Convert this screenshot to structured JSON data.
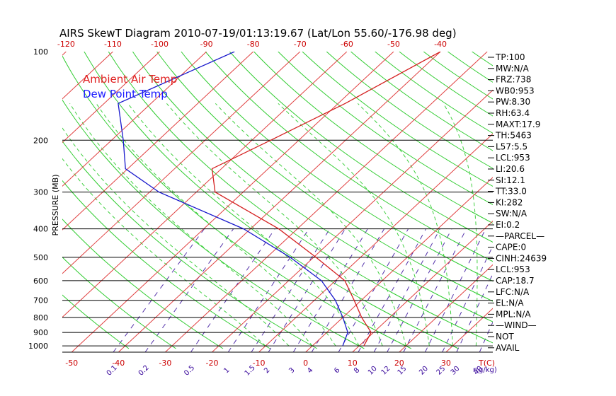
{
  "chart_data": {
    "type": "line",
    "title": "AIRS SkewT Diagram 2010-07-19/01:13:19.67 (Lat/Lon 55.60/-176.98 deg)",
    "ylabel": "PRESSURE (MB)",
    "xlabel_bottom_unit": "T(C)",
    "mixing_unit": "r(g/kg)",
    "pressure_ticks": [
      100,
      200,
      300,
      400,
      500,
      600,
      700,
      800,
      900,
      1000
    ],
    "pressure_range": [
      100,
      1050
    ],
    "temp_range_at_base": [
      -52,
      40
    ],
    "top_temp_ticks": [
      -120,
      -110,
      -100,
      -90,
      -80,
      -70,
      -60,
      -50,
      -40
    ],
    "bottom_temp_ticks": [
      -50,
      -40,
      -30,
      -20,
      -10,
      0,
      10,
      20,
      30
    ],
    "mixing_ratio_ticks": [
      "0.1",
      "0.2",
      "0.5",
      "1",
      "1.5",
      "2",
      "3",
      "4",
      "6",
      "8",
      "10",
      "12",
      "15",
      "20",
      "25",
      "30",
      "40"
    ],
    "legend": {
      "air": "Ambient Air Temp",
      "dew": "Dew Point Temp"
    },
    "colors": {
      "air": "#d42020",
      "dew": "#1818cc",
      "isotherm": "#e04040",
      "dry_adiabat": "#30cc30",
      "moist_adiabat": "#40d040",
      "mixing_ratio": "#5533aa",
      "isobar": "#000000"
    },
    "series": [
      {
        "name": "Ambient Air Temp",
        "points": [
          {
            "p": 100,
            "t": -40.0
          },
          {
            "p": 150,
            "t": -48.5
          },
          {
            "p": 200,
            "t": -56.0
          },
          {
            "p": 250,
            "t": -62.0
          },
          {
            "p": 300,
            "t": -56.0
          },
          {
            "p": 400,
            "t": -34.0
          },
          {
            "p": 500,
            "t": -19.5
          },
          {
            "p": 600,
            "t": -8.0
          },
          {
            "p": 700,
            "t": -1.5
          },
          {
            "p": 800,
            "t": 4.0
          },
          {
            "p": 900,
            "t": 9.5
          },
          {
            "p": 1000,
            "t": 11.0
          }
        ]
      },
      {
        "name": "Dew Point Temp",
        "points": [
          {
            "p": 100,
            "t": -84.0
          },
          {
            "p": 150,
            "t": -97.0
          },
          {
            "p": 200,
            "t": -87.5
          },
          {
            "p": 250,
            "t": -80.5
          },
          {
            "p": 300,
            "t": -68.0
          },
          {
            "p": 400,
            "t": -41.5
          },
          {
            "p": 500,
            "t": -25.0
          },
          {
            "p": 600,
            "t": -13.0
          },
          {
            "p": 700,
            "t": -5.5
          },
          {
            "p": 800,
            "t": 0.0
          },
          {
            "p": 900,
            "t": 4.5
          },
          {
            "p": 1000,
            "t": 6.5
          }
        ]
      }
    ],
    "indices": [
      "TP:100",
      "MW:N/A",
      "FRZ:738",
      "WB0:953",
      "PW:8.30",
      "RH:63.4",
      "MAXT:17.9",
      "TH:5463",
      "L57:5.5",
      "LCL:953",
      "LI:20.6",
      "SI:12.1",
      "TT:33.0",
      "KI:282",
      "SW:N/A",
      "EI:0.2",
      "—PARCEL—",
      "CAPE:0",
      "CINH:24639",
      "LCL:953",
      "CAP:18.7",
      "LFC:N/A",
      "EL:N/A",
      "MPL:N/A",
      "—WIND—",
      "NOT",
      "AVAIL"
    ]
  }
}
